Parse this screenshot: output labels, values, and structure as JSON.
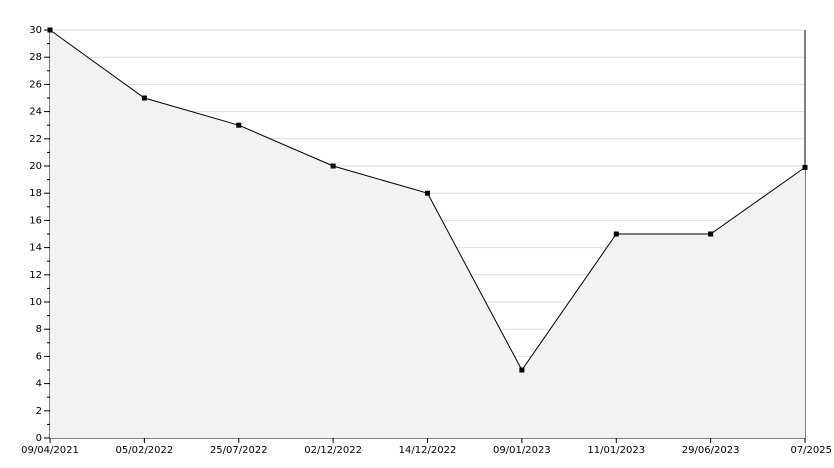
{
  "chart_data": {
    "type": "area",
    "categories": [
      "09/04/2021",
      "05/02/2022",
      "25/07/2022",
      "02/12/2022",
      "14/12/2022",
      "09/01/2023",
      "11/01/2023",
      "29/06/2023",
      "07/2025"
    ],
    "values": [
      30,
      25,
      23,
      20,
      18,
      5,
      15,
      15,
      19.9
    ],
    "color": "#000000",
    "fill": "#f2f2f2",
    "ylim": [
      0,
      30
    ],
    "yticks": [
      0,
      2,
      4,
      6,
      8,
      10,
      12,
      14,
      16,
      18,
      20,
      22,
      24,
      26,
      28,
      30
    ],
    "grid": true
  }
}
